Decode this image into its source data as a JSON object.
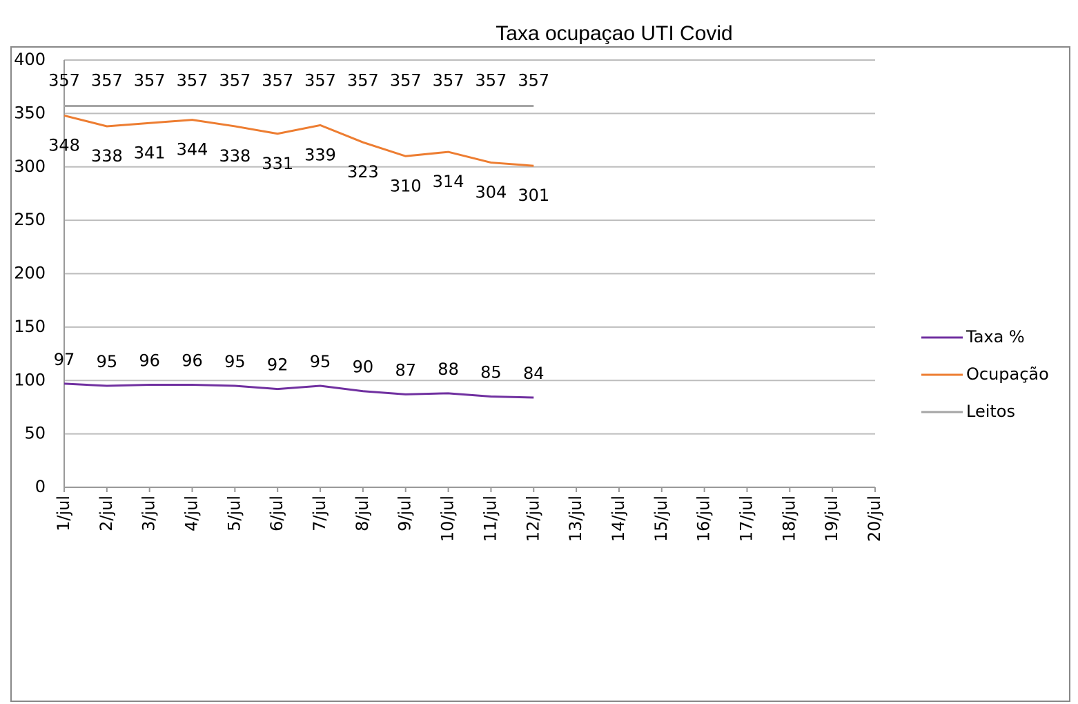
{
  "chart_data": {
    "type": "line",
    "title": "Taxa ocupaçao UTI Covid",
    "categories": [
      "1/jul",
      "2/jul",
      "3/jul",
      "4/jul",
      "5/jul",
      "6/jul",
      "7/jul",
      "8/jul",
      "9/jul",
      "10/jul",
      "11/jul",
      "12/jul",
      "13/jul",
      "14/jul",
      "15/jul",
      "16/jul",
      "17/jul",
      "18/jul",
      "19/jul",
      "20/jul"
    ],
    "series": [
      {
        "name": "Taxa %",
        "color": "#7030a0",
        "values": [
          97,
          95,
          96,
          96,
          95,
          92,
          95,
          90,
          87,
          88,
          85,
          84,
          null,
          null,
          null,
          null,
          null,
          null,
          null,
          null
        ]
      },
      {
        "name": "Ocupação",
        "color": "#ed7d31",
        "values": [
          348,
          338,
          341,
          344,
          338,
          331,
          339,
          323,
          310,
          314,
          304,
          301,
          null,
          null,
          null,
          null,
          null,
          null,
          null,
          null
        ]
      },
      {
        "name": "Leitos",
        "color": "#a5a5a5",
        "values": [
          357,
          357,
          357,
          357,
          357,
          357,
          357,
          357,
          357,
          357,
          357,
          357,
          null,
          null,
          null,
          null,
          null,
          null,
          null,
          null
        ]
      }
    ],
    "ylim": [
      0,
      400
    ],
    "yticks": [
      0,
      50,
      100,
      150,
      200,
      250,
      300,
      350,
      400
    ],
    "grid": true,
    "legend": "right"
  }
}
